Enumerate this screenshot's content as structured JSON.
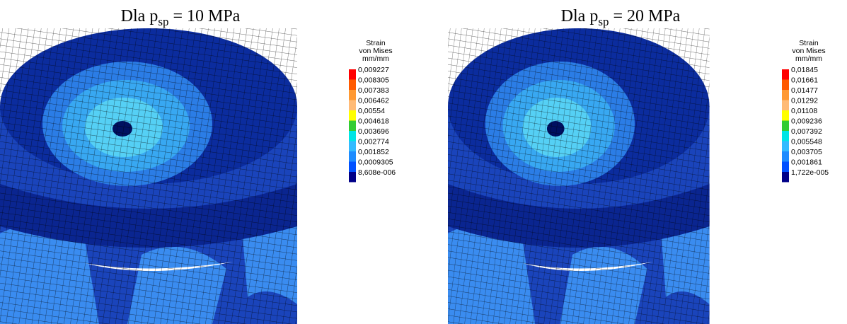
{
  "panels": [
    {
      "title": {
        "text": "Dla p",
        "subscript": "sp",
        "rest": " = 10 MPa"
      },
      "legend": {
        "title": [
          "Strain",
          "von Mises",
          "mm/mm"
        ],
        "labels": [
          "0,009227",
          "0,008305",
          "0,007383",
          "0,006462",
          "0,00554",
          "0,004618",
          "0,003696",
          "0,002774",
          "0,001852",
          "0,0009305",
          "8,608e-006"
        ]
      }
    },
    {
      "title": {
        "text": "Dla p",
        "subscript": "sp",
        "rest": " = 20 MPa"
      },
      "legend": {
        "title": [
          "Strain",
          "von Mises",
          "mm/mm"
        ],
        "labels": [
          "0,01845",
          "0,01661",
          "0,01477",
          "0,01292",
          "0,01108",
          "0,009236",
          "0,007392",
          "0,005548",
          "0,003705",
          "0,001861",
          "1,722e-005"
        ]
      }
    }
  ],
  "legend_colors": [
    "#ff0000",
    "#ff5a00",
    "#ff9933",
    "#ffbb77",
    "#ffff00",
    "#33cc33",
    "#00e5e5",
    "#33bbff",
    "#1e8cff",
    "#0050ff",
    "#000088"
  ]
}
